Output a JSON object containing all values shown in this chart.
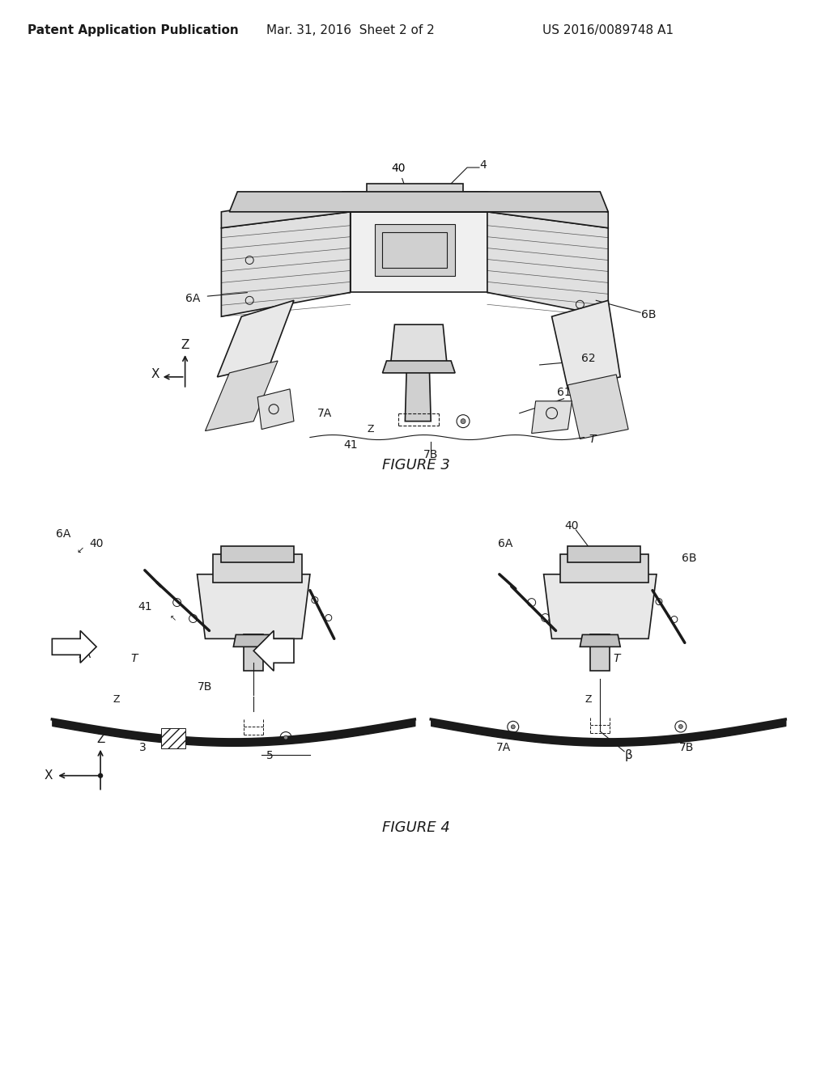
{
  "background_color": "#ffffff",
  "header_text": "Patent Application Publication",
  "header_date": "Mar. 31, 2016  Sheet 2 of 2",
  "header_number": "US 2016/0089748 A1",
  "figure3_caption": "FIGURE 3",
  "figure4_caption": "FIGURE 4",
  "line_color": "#1a1a1a",
  "label_fontsize": 10,
  "caption_fontsize": 12,
  "header_fontsize": 11
}
